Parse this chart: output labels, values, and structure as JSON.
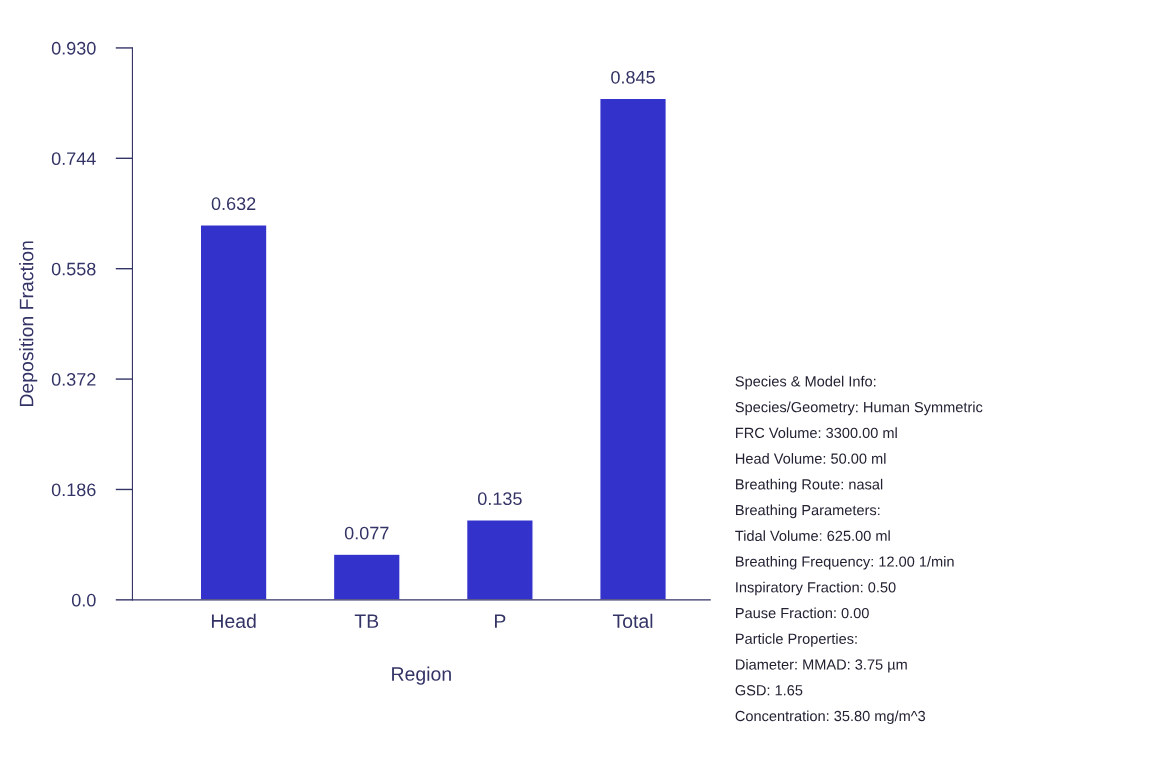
{
  "chart_data": {
    "type": "bar",
    "xlabel": "Region",
    "ylabel": "Deposition Fraction",
    "categories": [
      "Head",
      "TB",
      "P",
      "Total"
    ],
    "values": [
      0.632,
      0.077,
      0.135,
      0.845
    ],
    "color": "#3333cc",
    "data_labels": true,
    "ylim": [
      0,
      0.93
    ],
    "yticks": [
      {
        "value": 0,
        "label": "0.0"
      },
      0.186,
      0.372,
      0.558,
      0.744,
      {
        "value": 0.93,
        "label": "0.930"
      }
    ],
    "grid": false,
    "annotations": [
      "Species & Model Info:",
      "Species/Geometry: Human Symmetric",
      "FRC Volume: 3300.00 ml",
      "Head Volume: 50.00 ml",
      "Breathing Route: nasal",
      "Breathing Parameters:",
      "Tidal Volume: 625.00 ml",
      "Breathing Frequency: 12.00 1/min",
      "Inspiratory Fraction: 0.50",
      "Pause Fraction: 0.00",
      "Particle Properties:",
      "Diameter: MMAD: 3.75 µm",
      "GSD: 1.65",
      "Concentration: 35.80 mg/m^3"
    ]
  }
}
